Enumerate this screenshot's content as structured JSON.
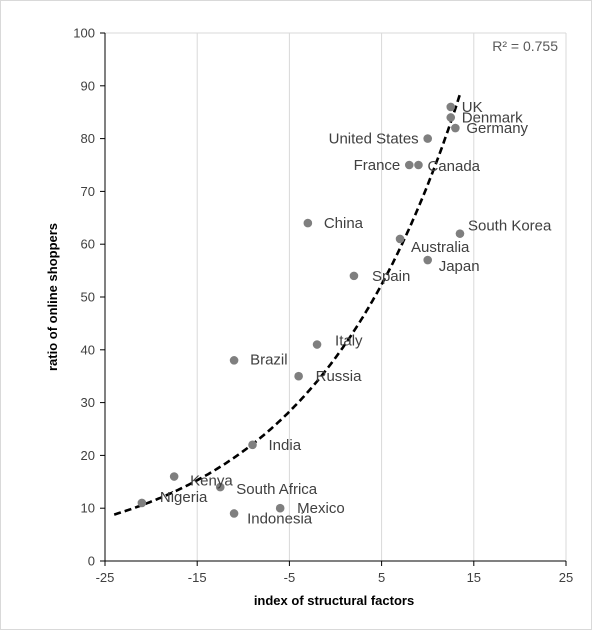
{
  "chart_data": {
    "type": "scatter",
    "xlabel": "index of structural factors",
    "ylabel": "ratio of online shoppers",
    "xlim": [
      -25,
      25
    ],
    "ylim": [
      0,
      100
    ],
    "xticks": [
      -25,
      -15,
      -5,
      5,
      15,
      25
    ],
    "yticks": [
      0,
      10,
      20,
      30,
      40,
      50,
      60,
      70,
      80,
      90,
      100
    ],
    "grid": "vertical",
    "marker_color": "#7f7f7f",
    "trendline": {
      "style": "dashed",
      "color": "#000000",
      "r2_text": "R² = 0.755"
    },
    "points": [
      {
        "label": "UK",
        "x": 12.5,
        "y": 86
      },
      {
        "label": "Denmark",
        "x": 12.5,
        "y": 84
      },
      {
        "label": "Germany",
        "x": 13,
        "y": 82
      },
      {
        "label": "United States",
        "x": 10,
        "y": 80
      },
      {
        "label": "France",
        "x": 8,
        "y": 75
      },
      {
        "label": "Canada",
        "x": 9,
        "y": 75
      },
      {
        "label": "China",
        "x": -3,
        "y": 64
      },
      {
        "label": "South Korea",
        "x": 13.5,
        "y": 62
      },
      {
        "label": "Australia",
        "x": 7,
        "y": 61
      },
      {
        "label": "Japan",
        "x": 10,
        "y": 57
      },
      {
        "label": "Spain",
        "x": 2,
        "y": 54
      },
      {
        "label": "Italy",
        "x": -2,
        "y": 41
      },
      {
        "label": "Brazil",
        "x": -11,
        "y": 38
      },
      {
        "label": "Russia",
        "x": -4,
        "y": 35
      },
      {
        "label": "India",
        "x": -9,
        "y": 22
      },
      {
        "label": "Kenya",
        "x": -17.5,
        "y": 16
      },
      {
        "label": "South Africa",
        "x": -12.5,
        "y": 14
      },
      {
        "label": "Nigeria",
        "x": -21,
        "y": 11
      },
      {
        "label": "Mexico",
        "x": -6,
        "y": 10
      },
      {
        "label": "Indonesia",
        "x": -11,
        "y": 9
      }
    ]
  }
}
